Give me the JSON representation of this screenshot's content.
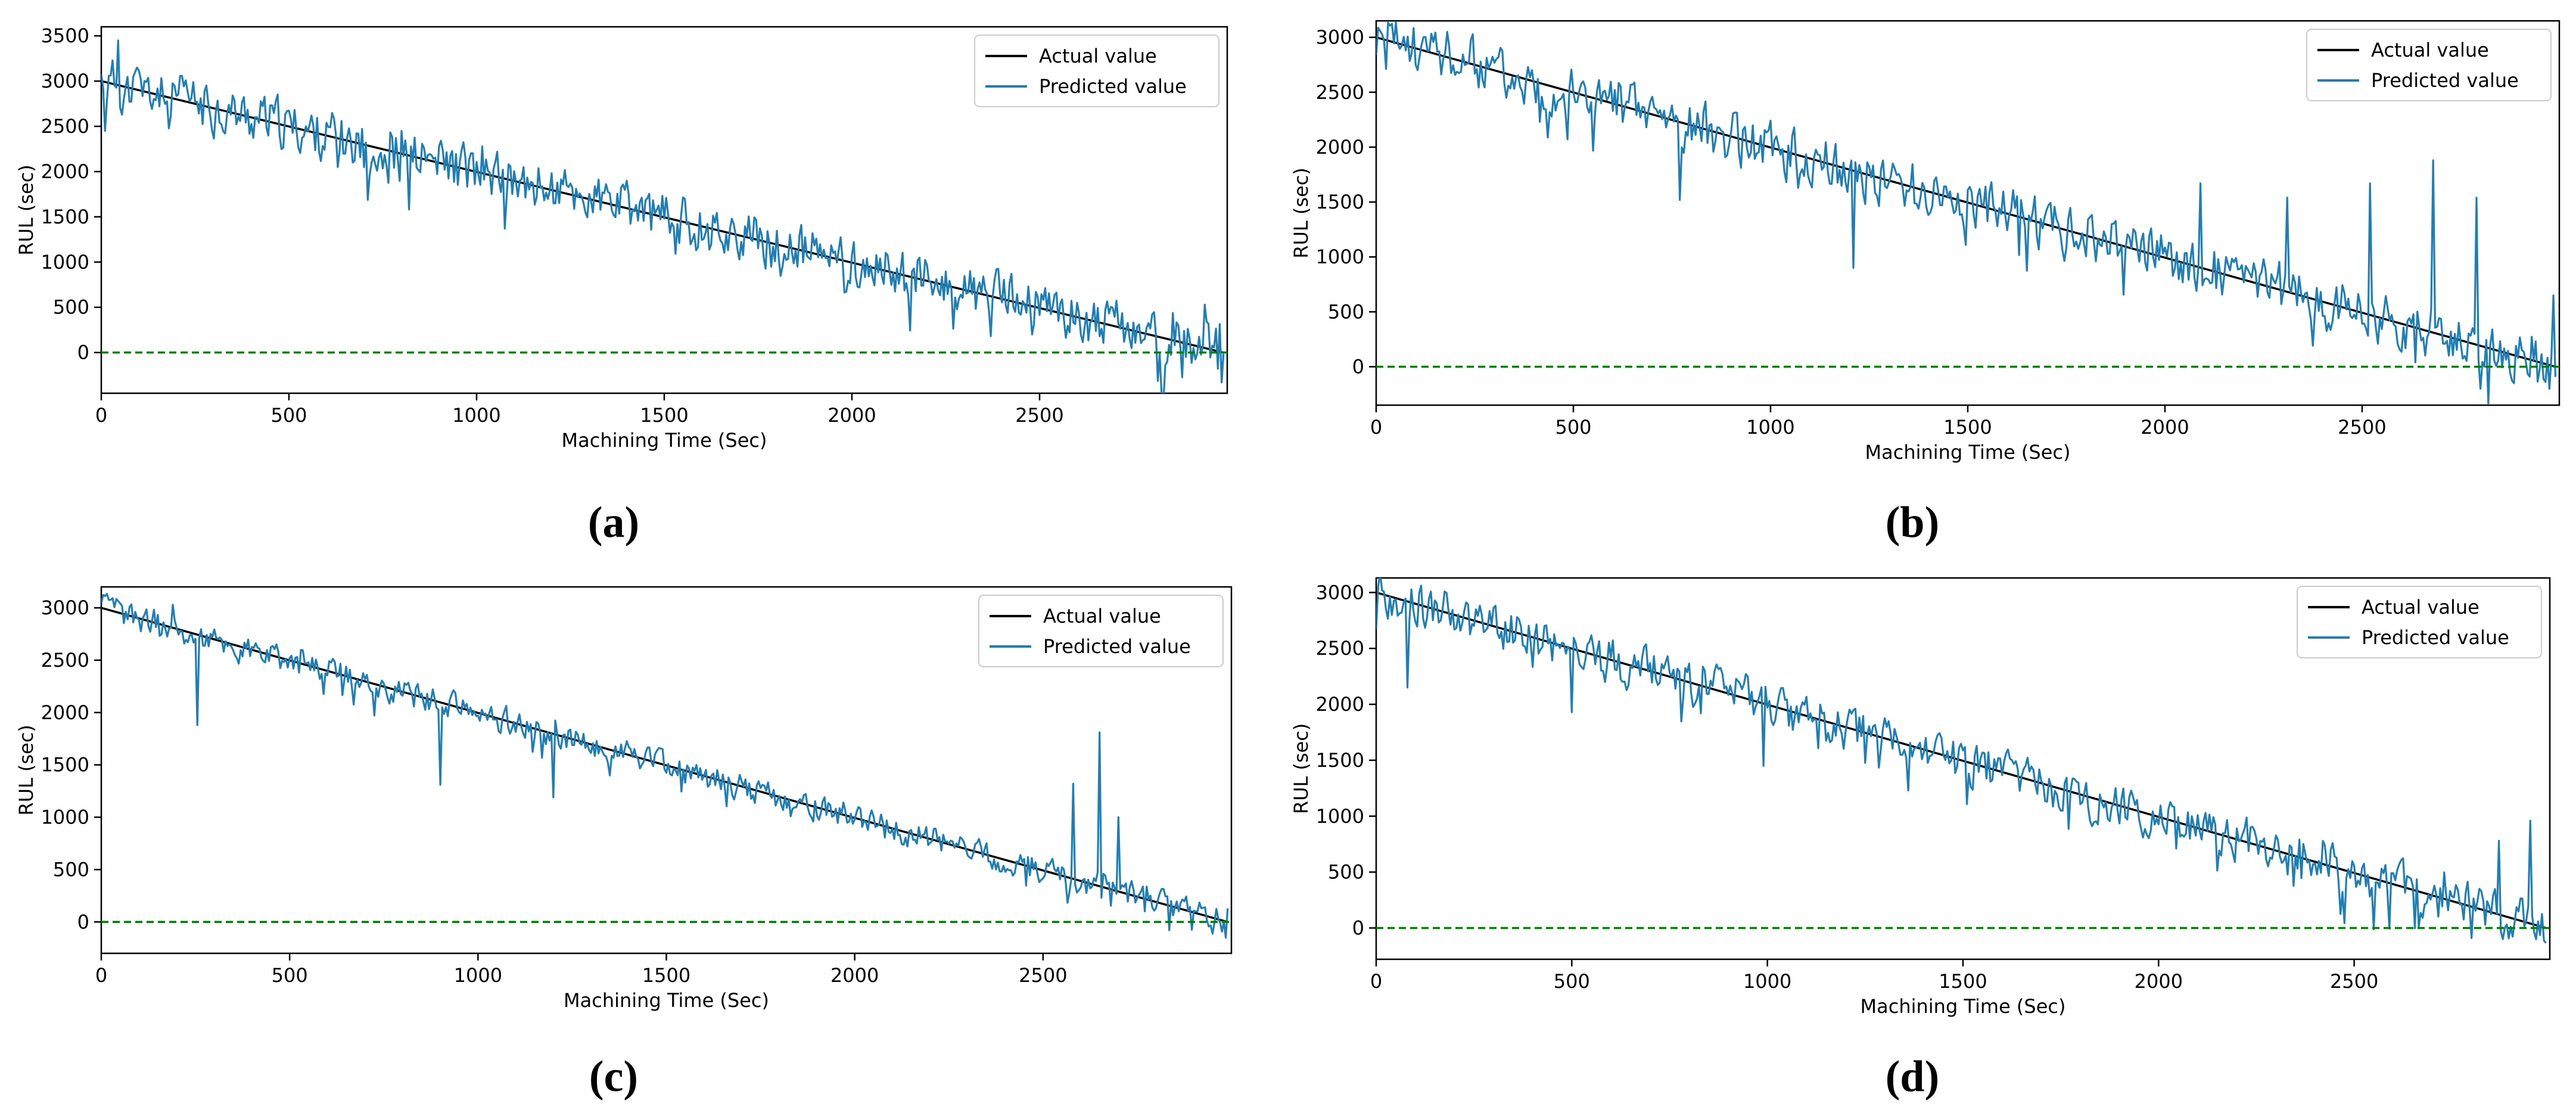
{
  "chart_data": [
    {
      "id": "a",
      "panel_label": "(a)",
      "type": "line",
      "xlabel": "Machining Time (Sec)",
      "ylabel": "RUL (sec)",
      "xlim": [
        0,
        3000
      ],
      "ylim": [
        -450,
        3600
      ],
      "xticks": [
        0,
        500,
        1000,
        1500,
        2000,
        2500
      ],
      "yticks": [
        0,
        500,
        1000,
        1500,
        2000,
        2500,
        3000,
        3500
      ],
      "legend": [
        "Actual value",
        "Predicted value"
      ],
      "legend_position": "top-right",
      "series": [
        {
          "name": "Actual value",
          "color": "#000000",
          "x": [
            0,
            2990
          ],
          "values": [
            3000,
            0
          ]
        },
        {
          "name": "Predicted value",
          "color": "#1f77b4",
          "noise": 280,
          "seed": 11,
          "spikes": [
            [
              10,
              2450
            ],
            [
              45,
              3450
            ],
            [
              2480,
              200
            ],
            [
              2940,
              530
            ],
            [
              2985,
              -330
            ]
          ]
        },
        {
          "name": "Threshold",
          "color": "#008000",
          "dashed": true,
          "x": [
            0,
            3000
          ],
          "values": [
            0,
            0
          ]
        }
      ]
    },
    {
      "id": "b",
      "panel_label": "(b)",
      "type": "line",
      "xlabel": "Machining Time (Sec)",
      "ylabel": "RUL (sec)",
      "xlim": [
        0,
        3000
      ],
      "ylim": [
        -350,
        3150
      ],
      "xticks": [
        0,
        500,
        1000,
        1500,
        2000,
        2500
      ],
      "yticks": [
        0,
        500,
        1000,
        1500,
        2000,
        2500,
        3000
      ],
      "legend": [
        "Actual value",
        "Predicted value"
      ],
      "legend_position": "top-right",
      "series": [
        {
          "name": "Actual value",
          "color": "#000000",
          "x": [
            0,
            2990
          ],
          "values": [
            3000,
            0
          ]
        },
        {
          "name": "Predicted value",
          "color": "#1f77b4",
          "noise": 240,
          "seed": 23,
          "spikes": [
            [
              180,
              3050
            ],
            [
              770,
              1520
            ],
            [
              1210,
              900
            ],
            [
              2090,
              1670
            ],
            [
              2310,
              1540
            ],
            [
              2520,
              1670
            ],
            [
              2680,
              1880
            ],
            [
              2790,
              1540
            ],
            [
              2800,
              -200
            ],
            [
              2985,
              650
            ],
            [
              2975,
              -200
            ]
          ]
        },
        {
          "name": "Threshold",
          "color": "#008000",
          "dashed": true,
          "x": [
            0,
            3000
          ],
          "values": [
            0,
            0
          ]
        }
      ]
    },
    {
      "id": "c",
      "panel_label": "(c)",
      "type": "line",
      "xlabel": "Machining Time (Sec)",
      "ylabel": "RUL (sec)",
      "xlim": [
        0,
        3000
      ],
      "ylim": [
        -300,
        3200
      ],
      "xticks": [
        0,
        500,
        1000,
        1500,
        2000,
        2500
      ],
      "yticks": [
        0,
        500,
        1000,
        1500,
        2000,
        2500,
        3000
      ],
      "legend": [
        "Actual value",
        "Predicted value"
      ],
      "legend_position": "top-right",
      "series": [
        {
          "name": "Actual value",
          "color": "#000000",
          "x": [
            0,
            2990
          ],
          "values": [
            3000,
            0
          ]
        },
        {
          "name": "Predicted value",
          "color": "#1f77b4",
          "noise": 130,
          "seed": 37,
          "spikes": [
            [
              190,
              3030
            ],
            [
              255,
              1880
            ],
            [
              900,
              1310
            ],
            [
              1200,
              1190
            ],
            [
              2580,
              1320
            ],
            [
              2650,
              1810
            ],
            [
              2700,
              1000
            ],
            [
              2985,
              -150
            ],
            [
              2995,
              350
            ]
          ]
        },
        {
          "name": "Threshold",
          "color": "#008000",
          "dashed": true,
          "x": [
            0,
            3000
          ],
          "values": [
            0,
            0
          ]
        }
      ]
    },
    {
      "id": "d",
      "panel_label": "(d)",
      "type": "line",
      "xlabel": "Machining Time (Sec)",
      "ylabel": "RUL (sec)",
      "xlim": [
        0,
        3000
      ],
      "ylim": [
        -280,
        3130
      ],
      "xticks": [
        0,
        500,
        1000,
        1500,
        2000,
        2500
      ],
      "yticks": [
        0,
        500,
        1000,
        1500,
        2000,
        2500,
        3000
      ],
      "legend": [
        "Actual value",
        "Predicted value"
      ],
      "legend_position": "top-right",
      "series": [
        {
          "name": "Actual value",
          "color": "#000000",
          "x": [
            0,
            2990
          ],
          "values": [
            3000,
            0
          ]
        },
        {
          "name": "Predicted value",
          "color": "#1f77b4",
          "noise": 200,
          "seed": 53,
          "spikes": [
            [
              80,
              2150
            ],
            [
              500,
              1930
            ],
            [
              990,
              1450
            ],
            [
              2800,
              -90
            ],
            [
              2870,
              780
            ],
            [
              2950,
              960
            ],
            [
              2965,
              -100
            ],
            [
              2995,
              100
            ]
          ]
        },
        {
          "name": "Threshold",
          "color": "#008000",
          "dashed": true,
          "x": [
            0,
            3000
          ],
          "values": [
            0,
            0
          ]
        }
      ]
    }
  ]
}
